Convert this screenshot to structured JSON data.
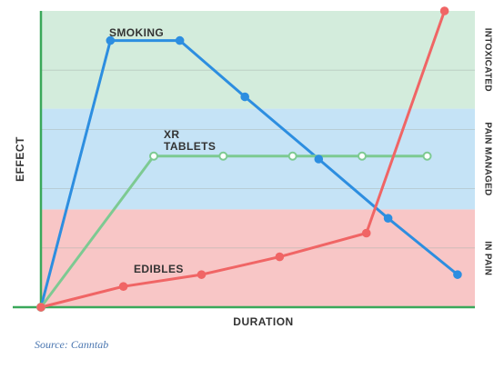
{
  "chart_data": {
    "type": "line",
    "xlabel": "DURATION",
    "ylabel": "EFFECT",
    "xlim": [
      0,
      100
    ],
    "ylim": [
      0,
      100
    ],
    "zones": [
      {
        "label": "IN PAIN",
        "range": [
          0,
          33
        ],
        "color": "#f8c6c6"
      },
      {
        "label": "PAIN MANAGED",
        "range": [
          33,
          67
        ],
        "color": "#c5e3f6"
      },
      {
        "label": "INTOXICATED",
        "range": [
          67,
          100
        ],
        "color": "#d3ecdc"
      }
    ],
    "series": [
      {
        "name": "SMOKING",
        "color": "#2d8ee0",
        "marker": "filled",
        "x": [
          0,
          16,
          32,
          47,
          64,
          80,
          96
        ],
        "y": [
          0,
          90,
          90,
          71,
          50,
          30,
          11
        ]
      },
      {
        "name": "XR\nTABLETS",
        "color": "#7dca92",
        "marker": "hollow",
        "x": [
          0,
          26,
          42,
          58,
          74,
          89
        ],
        "y": [
          0,
          51,
          51,
          51,
          51,
          51
        ]
      },
      {
        "name": "EDIBLES",
        "color": "#f06565",
        "marker": "filled",
        "x": [
          0,
          19,
          37,
          55,
          75,
          93
        ],
        "y": [
          0,
          7,
          11,
          17,
          25,
          100
        ]
      }
    ]
  },
  "source_text": "Source: Canntab"
}
